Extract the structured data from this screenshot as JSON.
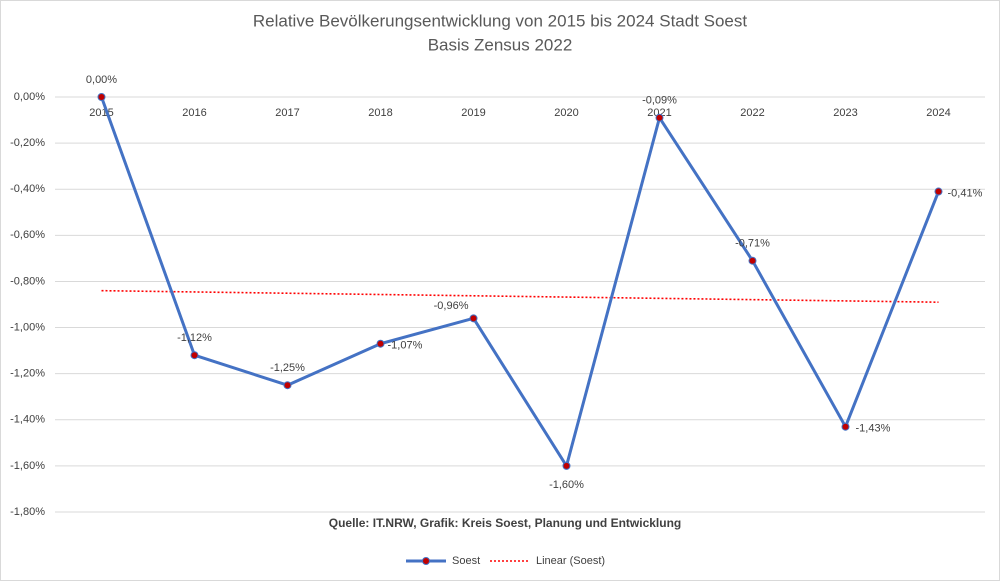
{
  "chart_data": {
    "type": "line",
    "title": "Relative Bevölkerungsentwicklung von 2015 bis 2024 Stadt Soest",
    "subtitle": "Basis Zensus 2022",
    "note": "Quelle: IT.NRW, Grafik: Kreis Soest, Planung und Entwicklung",
    "categories": [
      "2015",
      "2016",
      "2017",
      "2018",
      "2019",
      "2020",
      "2021",
      "2022",
      "2023",
      "2024"
    ],
    "series": [
      {
        "name": "Soest",
        "color": "#4472c4",
        "marker_color": "#c00000",
        "values": [
          0,
          -1.12,
          -1.25,
          -1.07,
          -0.96,
          -1.6,
          -0.09,
          -0.71,
          -1.43,
          -0.41
        ],
        "value_labels": [
          "0,00%",
          "-1,12%",
          "-1,25%",
          "-1,07%",
          "-0,96%",
          "-1,60%",
          "-0,09%",
          "-0,71%",
          "-1,43%",
          "-0,41%"
        ]
      }
    ],
    "trendline": {
      "name": "Linear (Soest)",
      "color": "#ff0000",
      "values": [
        -0.84,
        -0.89
      ]
    },
    "ylim": [
      -1.8,
      0
    ],
    "yticks": [
      {
        "value": 0,
        "label": "0,00%"
      },
      {
        "value": -0.2,
        "label": "-0,20%"
      },
      {
        "value": -0.4,
        "label": "-0,40%"
      },
      {
        "value": -0.6,
        "label": "-0,60%"
      },
      {
        "value": -0.8,
        "label": "-0,80%"
      },
      {
        "value": -1.0,
        "label": "-1,00%"
      },
      {
        "value": -1.2,
        "label": "-1,20%"
      },
      {
        "value": -1.4,
        "label": "-1,40%"
      },
      {
        "value": -1.6,
        "label": "-1,60%"
      },
      {
        "value": -1.8,
        "label": "-1,80%"
      }
    ],
    "grid": true
  }
}
